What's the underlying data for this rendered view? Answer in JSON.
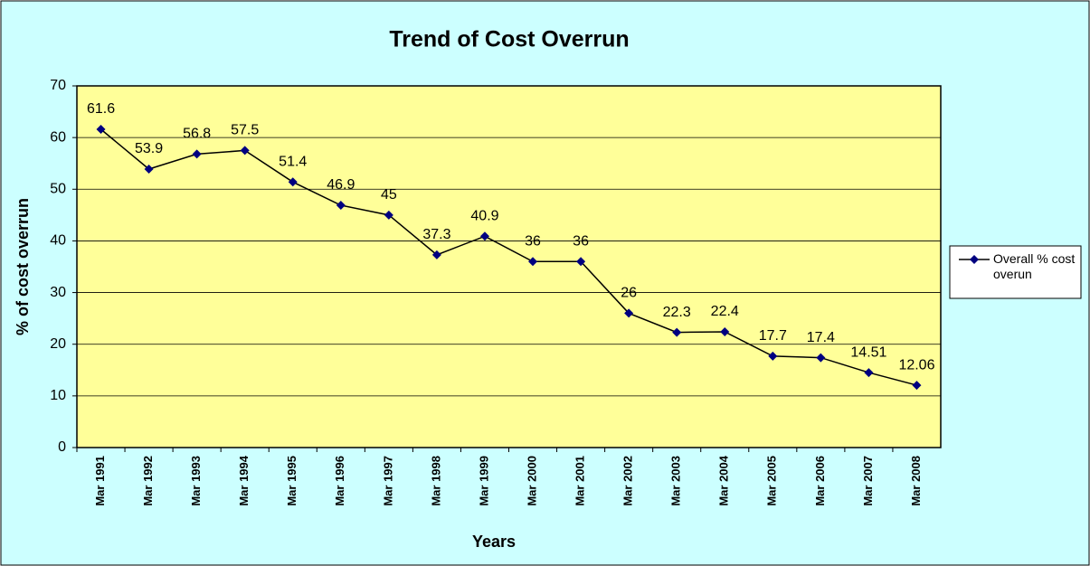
{
  "chart_data": {
    "type": "line",
    "title": "Trend of Cost Overrun",
    "x_label": "Years",
    "y_label": "% of cost overrun",
    "categories": [
      "Mar 1991",
      "Mar 1992",
      "Mar 1993",
      "Mar 1994",
      "Mar 1995",
      "Mar 1996",
      "Mar 1997",
      "Mar 1998",
      "Mar 1999",
      "Mar 2000",
      "Mar 2001",
      "Mar 2002",
      "Mar 2003",
      "Mar 2004",
      "Mar 2005",
      "Mar 2006",
      "Mar 2007",
      "Mar 2008"
    ],
    "series": [
      {
        "name": "Overall % cost overun",
        "color": "#000080",
        "values": [
          61.6,
          53.9,
          56.8,
          57.5,
          51.4,
          46.9,
          45,
          37.3,
          40.9,
          36,
          36,
          26,
          22.3,
          22.4,
          17.7,
          17.4,
          14.51,
          12.06
        ]
      }
    ],
    "ylim": [
      0,
      70
    ],
    "yticks": [
      0,
      10,
      20,
      30,
      40,
      50,
      60,
      70
    ],
    "grid": true,
    "legend": "right"
  }
}
